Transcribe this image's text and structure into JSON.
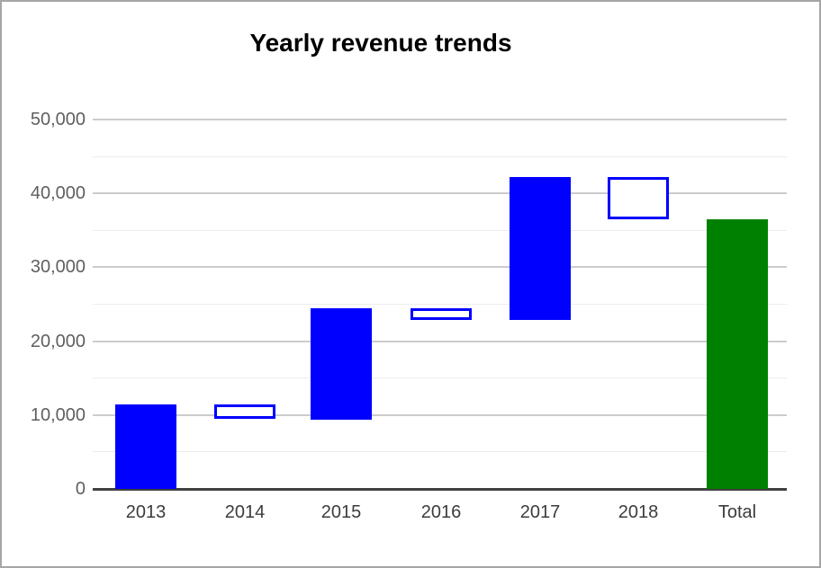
{
  "title": "Yearly revenue trends",
  "window": {
    "background": "#ffffff",
    "border_color": "#a6a6a6"
  },
  "chart_data": {
    "type": "waterfall",
    "title": "Yearly revenue trends",
    "categories": [
      "2013",
      "2014",
      "2015",
      "2016",
      "2017",
      "2018",
      "Total"
    ],
    "series": [
      {
        "name": "2013",
        "start": 0,
        "end": 11400,
        "kind": "rise"
      },
      {
        "name": "2014",
        "start": 11400,
        "end": 9400,
        "kind": "fall"
      },
      {
        "name": "2015",
        "start": 9400,
        "end": 24500,
        "kind": "rise"
      },
      {
        "name": "2016",
        "start": 24500,
        "end": 22900,
        "kind": "fall"
      },
      {
        "name": "2017",
        "start": 22900,
        "end": 42200,
        "kind": "rise"
      },
      {
        "name": "2018",
        "start": 42200,
        "end": 36500,
        "kind": "fall"
      },
      {
        "name": "Total",
        "start": 0,
        "end": 36500,
        "kind": "total"
      }
    ],
    "y_axis": {
      "min": 0,
      "max": 50000,
      "major_step": 10000,
      "minor_step": 5000,
      "tick_labels": [
        "0",
        "10,000",
        "20,000",
        "30,000",
        "40,000",
        "50,000"
      ]
    },
    "x_axis": {
      "labels": [
        "2013",
        "2014",
        "2015",
        "2016",
        "2017",
        "2018",
        "Total"
      ]
    },
    "grid": true,
    "legend": "none",
    "colors": {
      "rise_fill": "#0000ff",
      "fall_fill": "#ffffff",
      "fall_stroke": "#0000ff",
      "total_fill": "#008000",
      "grid_major": "#cccccc",
      "grid_minor": "#ececec",
      "baseline": "#404040",
      "y_label_color": "#5f5f5f",
      "x_label_color": "#3c3c3c",
      "title_color": "#000000"
    }
  }
}
